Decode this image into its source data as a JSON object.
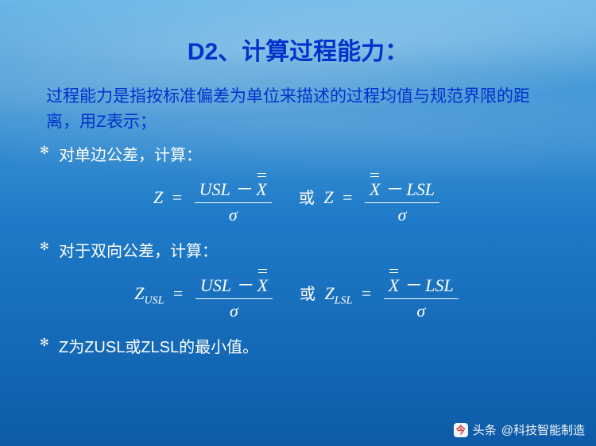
{
  "title": "D2、计算过程能力：",
  "intro": "过程能力是指按标准偏差为单位来描述的过程均值与规范界限的距离，用Z表示；",
  "bullets": {
    "single": "对单边公差，计算：",
    "double": "对于双向公差，计算：",
    "min": "Z为ZUSL或ZLSL的最小值。"
  },
  "formula": {
    "Z": "Z",
    "Zusl": "USL",
    "Zlsl": "LSL",
    "USL": "USL",
    "LSL": "LSL",
    "X": "X",
    "sigma": "σ",
    "minus": "－",
    "equals": "=",
    "or": "或"
  },
  "watermark": {
    "label": "头条",
    "author": "@科技智能制造"
  },
  "colors": {
    "title_color": "#0033cc",
    "text_color": "#ffffff",
    "bg_top": "#6bb8e8",
    "bg_bottom": "#0d5ba8"
  }
}
